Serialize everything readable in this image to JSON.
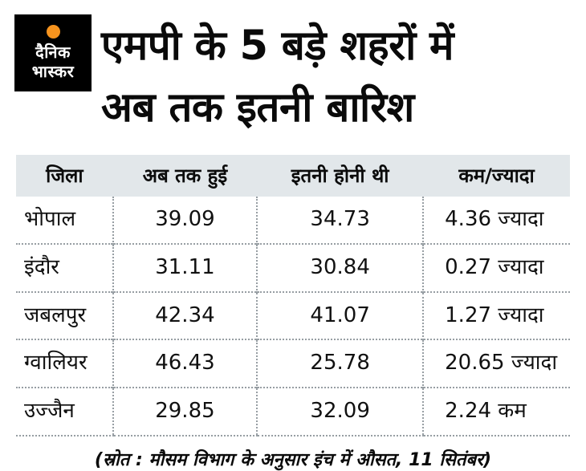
{
  "logo": {
    "line1": "दैनिक",
    "line2": "भास्कर"
  },
  "title": {
    "line1": "एमपी के 5 बड़े शहरों में",
    "line2": "अब तक इतनी बारिश"
  },
  "table": {
    "headers": [
      "जिला",
      "अब तक हुई",
      "इतनी होनी थी",
      "कम/ज्यादा"
    ],
    "rows": [
      [
        "भोपाल",
        "39.09",
        "34.73",
        "4.36 ज्यादा"
      ],
      [
        "इंदौर",
        "31.11",
        "30.84",
        "0.27 ज्यादा"
      ],
      [
        "जबलपुर",
        "42.34",
        "41.07",
        "1.27 ज्यादा"
      ],
      [
        "ग्वालियर",
        "46.43",
        "25.78",
        "20.65 ज्यादा"
      ],
      [
        "उज्जैन",
        "29.85",
        "32.09",
        "2.24 कम"
      ]
    ]
  },
  "footer": {
    "text": "(स्रोत : मौसम विभाग के अनुसार इंच में औसत, 11 सितंबर)"
  },
  "colors": {
    "logo_bg": "#000000",
    "accent_orange": "#f7941e",
    "header_row_bg": "#e2e7ea",
    "dotted_line": "#979ea3",
    "text": "#0b0b0b"
  },
  "chart_data": {
    "type": "table",
    "title": "एमपी के 5 बड़े शहरों में अब तक इतनी बारिश",
    "columns": [
      "जिला",
      "अब तक हुई",
      "इतनी होनी थी",
      "कम/ज्यादा"
    ],
    "units": "इंच",
    "rows": [
      {
        "district": "भोपाल",
        "rain_so_far": 39.09,
        "rain_expected": 34.73,
        "difference": 4.36,
        "difference_label": "4.36 ज्यादा"
      },
      {
        "district": "इंदौर",
        "rain_so_far": 31.11,
        "rain_expected": 30.84,
        "difference": 0.27,
        "difference_label": "0.27 ज्यादा"
      },
      {
        "district": "जबलपुर",
        "rain_so_far": 42.34,
        "rain_expected": 41.07,
        "difference": 1.27,
        "difference_label": "1.27 ज्यादा"
      },
      {
        "district": "ग्वालियर",
        "rain_so_far": 46.43,
        "rain_expected": 25.78,
        "difference": 20.65,
        "difference_label": "20.65 ज्यादा"
      },
      {
        "district": "उज्जैन",
        "rain_so_far": 29.85,
        "rain_expected": 32.09,
        "difference": -2.24,
        "difference_label": "2.24 कम"
      }
    ],
    "note": "(स्रोत : मौसम विभाग के अनुसार इंच में औसत, 11 सितंबर)"
  }
}
